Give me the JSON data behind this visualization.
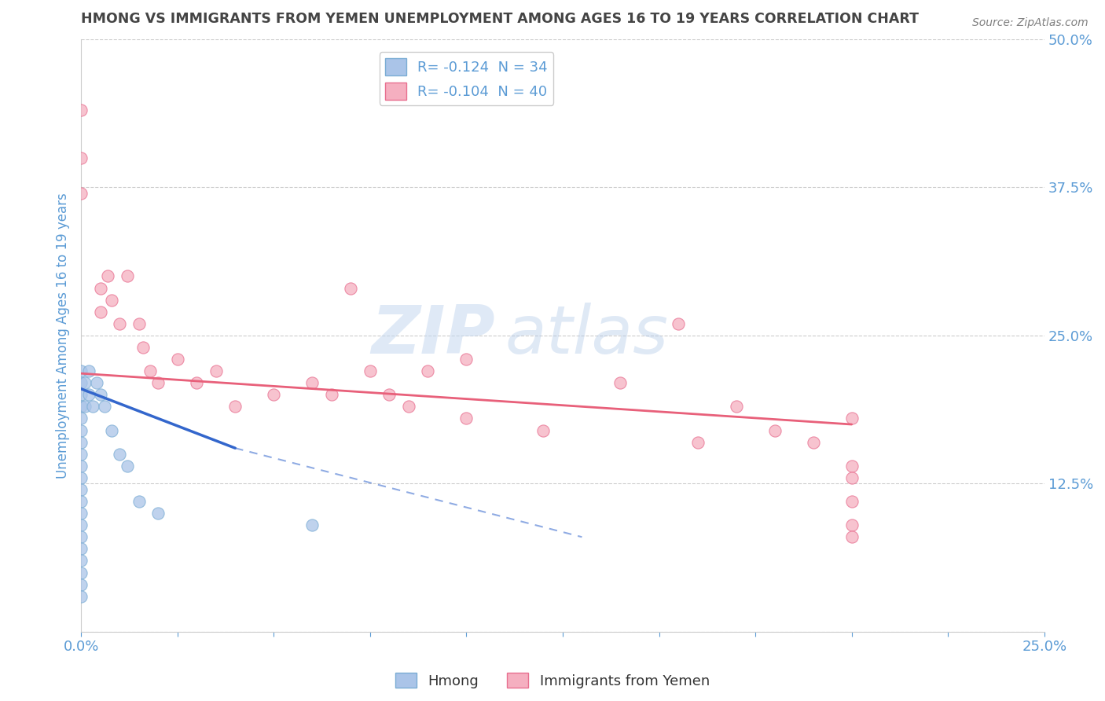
{
  "title": "HMONG VS IMMIGRANTS FROM YEMEN UNEMPLOYMENT AMONG AGES 16 TO 19 YEARS CORRELATION CHART",
  "source": "Source: ZipAtlas.com",
  "ylabel": "Unemployment Among Ages 16 to 19 years",
  "xlim": [
    0.0,
    0.25
  ],
  "ylim": [
    0.0,
    0.5
  ],
  "xticks": [
    0.0,
    0.025,
    0.05,
    0.075,
    0.1,
    0.125,
    0.15,
    0.175,
    0.2,
    0.225,
    0.25
  ],
  "xtick_labels": [
    "0.0%",
    "",
    "",
    "",
    "",
    "",
    "",
    "",
    "",
    "",
    "25.0%"
  ],
  "yticks": [
    0.0,
    0.125,
    0.25,
    0.375,
    0.5
  ],
  "ytick_labels": [
    "",
    "12.5%",
    "25.0%",
    "37.5%",
    "50.0%"
  ],
  "legend_r1": "R= -0.124",
  "legend_n1": "N = 34",
  "legend_r2": "R= -0.104",
  "legend_n2": "N = 40",
  "hmong_color": "#aac4e8",
  "hmong_edge": "#7badd4",
  "yemen_color": "#f5afc0",
  "yemen_edge": "#e87090",
  "trendline_hmong_color": "#3366cc",
  "trendline_yemen_color": "#e8607a",
  "watermark_color": "#c5d8f0",
  "background_color": "#ffffff",
  "grid_color": "#cccccc",
  "title_color": "#444444",
  "tick_color": "#5b9bd5",
  "hmong_x": [
    0.0,
    0.0,
    0.0,
    0.0,
    0.0,
    0.0,
    0.0,
    0.0,
    0.0,
    0.0,
    0.0,
    0.0,
    0.0,
    0.0,
    0.0,
    0.0,
    0.0,
    0.0,
    0.0,
    0.0,
    0.001,
    0.001,
    0.002,
    0.002,
    0.003,
    0.004,
    0.005,
    0.006,
    0.008,
    0.01,
    0.012,
    0.015,
    0.02,
    0.06
  ],
  "hmong_y": [
    0.22,
    0.21,
    0.2,
    0.19,
    0.18,
    0.17,
    0.16,
    0.15,
    0.14,
    0.13,
    0.12,
    0.11,
    0.1,
    0.09,
    0.08,
    0.07,
    0.06,
    0.05,
    0.04,
    0.03,
    0.21,
    0.19,
    0.22,
    0.2,
    0.19,
    0.21,
    0.2,
    0.19,
    0.17,
    0.15,
    0.14,
    0.11,
    0.1,
    0.09
  ],
  "hmong_trendline_x0": 0.0,
  "hmong_trendline_x1": 0.04,
  "hmong_trendline_x2": 0.13,
  "hmong_trendline_y0": 0.205,
  "hmong_trendline_y1": 0.155,
  "hmong_trendline_y2": 0.08,
  "yemen_x": [
    0.0,
    0.0,
    0.0,
    0.005,
    0.005,
    0.007,
    0.008,
    0.01,
    0.012,
    0.015,
    0.016,
    0.018,
    0.02,
    0.025,
    0.03,
    0.035,
    0.04,
    0.05,
    0.06,
    0.065,
    0.07,
    0.075,
    0.08,
    0.085,
    0.09,
    0.1,
    0.1,
    0.12,
    0.14,
    0.155,
    0.16,
    0.17,
    0.18,
    0.19,
    0.2,
    0.2,
    0.2,
    0.2,
    0.2,
    0.2
  ],
  "yemen_y": [
    0.44,
    0.4,
    0.37,
    0.29,
    0.27,
    0.3,
    0.28,
    0.26,
    0.3,
    0.26,
    0.24,
    0.22,
    0.21,
    0.23,
    0.21,
    0.22,
    0.19,
    0.2,
    0.21,
    0.2,
    0.29,
    0.22,
    0.2,
    0.19,
    0.22,
    0.23,
    0.18,
    0.17,
    0.21,
    0.26,
    0.16,
    0.19,
    0.17,
    0.16,
    0.18,
    0.14,
    0.13,
    0.11,
    0.09,
    0.08
  ],
  "yemen_trendline_x0": 0.0,
  "yemen_trendline_x1": 0.2,
  "yemen_trendline_y0": 0.218,
  "yemen_trendline_y1": 0.175
}
